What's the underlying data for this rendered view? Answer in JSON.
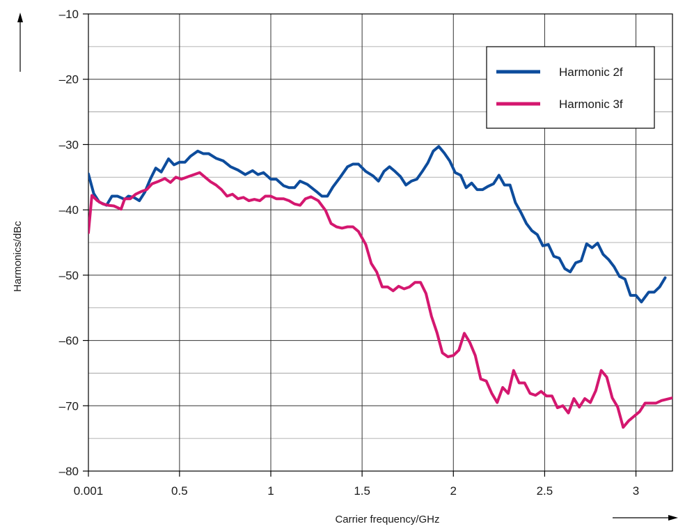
{
  "chart_data": {
    "type": "line",
    "title": "",
    "xlabel": "Carrier frequency/GHz",
    "ylabel": "Harmonics/dBc",
    "xlim": [
      0.001,
      3.2
    ],
    "ylim": [
      -80,
      -10
    ],
    "x_ticks": [
      {
        "value": 0.001,
        "label": "0.001"
      },
      {
        "value": 0.5,
        "label": "0.5"
      },
      {
        "value": 1,
        "label": "1"
      },
      {
        "value": 1.5,
        "label": "1.5"
      },
      {
        "value": 2,
        "label": "2"
      },
      {
        "value": 2.5,
        "label": "2.5"
      },
      {
        "value": 3,
        "label": "3"
      }
    ],
    "y_ticks": [
      {
        "value": -10,
        "label": "–10"
      },
      {
        "value": -20,
        "label": "–20"
      },
      {
        "value": -30,
        "label": "–30"
      },
      {
        "value": -40,
        "label": "–40"
      },
      {
        "value": -50,
        "label": "–50"
      },
      {
        "value": -60,
        "label": "–60"
      },
      {
        "value": -70,
        "label": "–70"
      },
      {
        "value": -80,
        "label": "–80"
      }
    ],
    "grid": true,
    "legend_position": "top-right",
    "series": [
      {
        "name": "Harmonic 2f",
        "color": "#0d4c9c",
        "points": [
          [
            0.001,
            -34.5
          ],
          [
            0.03,
            -37.5
          ],
          [
            0.06,
            -38.8
          ],
          [
            0.1,
            -39.3
          ],
          [
            0.13,
            -37.9
          ],
          [
            0.16,
            -37.9
          ],
          [
            0.2,
            -38.4
          ],
          [
            0.22,
            -37.9
          ],
          [
            0.25,
            -38.1
          ],
          [
            0.28,
            -38.6
          ],
          [
            0.31,
            -37.3
          ],
          [
            0.34,
            -35.3
          ],
          [
            0.37,
            -33.6
          ],
          [
            0.4,
            -34.2
          ],
          [
            0.44,
            -32.2
          ],
          [
            0.47,
            -33.1
          ],
          [
            0.5,
            -32.7
          ],
          [
            0.53,
            -32.7
          ],
          [
            0.56,
            -31.8
          ],
          [
            0.6,
            -31.0
          ],
          [
            0.63,
            -31.4
          ],
          [
            0.66,
            -31.4
          ],
          [
            0.7,
            -32.1
          ],
          [
            0.74,
            -32.5
          ],
          [
            0.78,
            -33.4
          ],
          [
            0.82,
            -33.9
          ],
          [
            0.86,
            -34.6
          ],
          [
            0.9,
            -34.0
          ],
          [
            0.93,
            -34.6
          ],
          [
            0.96,
            -34.3
          ],
          [
            1.0,
            -35.3
          ],
          [
            1.03,
            -35.3
          ],
          [
            1.07,
            -36.3
          ],
          [
            1.1,
            -36.6
          ],
          [
            1.13,
            -36.6
          ],
          [
            1.16,
            -35.6
          ],
          [
            1.2,
            -36.1
          ],
          [
            1.25,
            -37.2
          ],
          [
            1.28,
            -37.9
          ],
          [
            1.31,
            -37.9
          ],
          [
            1.34,
            -36.5
          ],
          [
            1.38,
            -35.0
          ],
          [
            1.42,
            -33.4
          ],
          [
            1.45,
            -33.0
          ],
          [
            1.48,
            -33.0
          ],
          [
            1.52,
            -34.1
          ],
          [
            1.56,
            -34.8
          ],
          [
            1.59,
            -35.6
          ],
          [
            1.62,
            -34.1
          ],
          [
            1.65,
            -33.4
          ],
          [
            1.68,
            -34.1
          ],
          [
            1.71,
            -34.9
          ],
          [
            1.74,
            -36.2
          ],
          [
            1.77,
            -35.6
          ],
          [
            1.8,
            -35.3
          ],
          [
            1.83,
            -34.1
          ],
          [
            1.86,
            -32.8
          ],
          [
            1.89,
            -31.0
          ],
          [
            1.92,
            -30.3
          ],
          [
            1.95,
            -31.3
          ],
          [
            1.98,
            -32.5
          ],
          [
            2.01,
            -34.3
          ],
          [
            2.04,
            -34.7
          ],
          [
            2.07,
            -36.6
          ],
          [
            2.1,
            -35.9
          ],
          [
            2.13,
            -36.9
          ],
          [
            2.16,
            -36.9
          ],
          [
            2.19,
            -36.4
          ],
          [
            2.22,
            -36.0
          ],
          [
            2.25,
            -34.7
          ],
          [
            2.28,
            -36.2
          ],
          [
            2.31,
            -36.2
          ],
          [
            2.34,
            -38.9
          ],
          [
            2.37,
            -40.4
          ],
          [
            2.4,
            -42.1
          ],
          [
            2.43,
            -43.2
          ],
          [
            2.46,
            -43.8
          ],
          [
            2.49,
            -45.5
          ],
          [
            2.52,
            -45.3
          ],
          [
            2.55,
            -47.1
          ],
          [
            2.58,
            -47.4
          ],
          [
            2.61,
            -49.0
          ],
          [
            2.64,
            -49.5
          ],
          [
            2.67,
            -48.1
          ],
          [
            2.7,
            -47.8
          ],
          [
            2.73,
            -45.2
          ],
          [
            2.76,
            -45.8
          ],
          [
            2.79,
            -45.1
          ],
          [
            2.82,
            -46.8
          ],
          [
            2.85,
            -47.6
          ],
          [
            2.88,
            -48.7
          ],
          [
            2.91,
            -50.2
          ],
          [
            2.94,
            -50.6
          ],
          [
            2.97,
            -53.1
          ],
          [
            3.0,
            -53.1
          ],
          [
            3.03,
            -54.1
          ],
          [
            3.07,
            -52.6
          ],
          [
            3.1,
            -52.6
          ],
          [
            3.13,
            -51.8
          ],
          [
            3.16,
            -50.4
          ]
        ]
      },
      {
        "name": "Harmonic 3f",
        "color": "#d4176f",
        "points": [
          [
            0.001,
            -43.5
          ],
          [
            0.02,
            -37.8
          ],
          [
            0.05,
            -38.6
          ],
          [
            0.08,
            -39.1
          ],
          [
            0.11,
            -39.3
          ],
          [
            0.14,
            -39.4
          ],
          [
            0.18,
            -39.9
          ],
          [
            0.2,
            -38.3
          ],
          [
            0.23,
            -38.3
          ],
          [
            0.26,
            -37.6
          ],
          [
            0.29,
            -37.2
          ],
          [
            0.32,
            -36.9
          ],
          [
            0.35,
            -36.0
          ],
          [
            0.38,
            -35.7
          ],
          [
            0.42,
            -35.2
          ],
          [
            0.45,
            -35.8
          ],
          [
            0.48,
            -35.0
          ],
          [
            0.51,
            -35.3
          ],
          [
            0.55,
            -34.9
          ],
          [
            0.58,
            -34.6
          ],
          [
            0.61,
            -34.3
          ],
          [
            0.64,
            -35.0
          ],
          [
            0.67,
            -35.7
          ],
          [
            0.7,
            -36.2
          ],
          [
            0.73,
            -36.9
          ],
          [
            0.76,
            -37.9
          ],
          [
            0.79,
            -37.6
          ],
          [
            0.82,
            -38.3
          ],
          [
            0.85,
            -38.1
          ],
          [
            0.88,
            -38.6
          ],
          [
            0.91,
            -38.4
          ],
          [
            0.94,
            -38.6
          ],
          [
            0.97,
            -37.9
          ],
          [
            1.0,
            -37.9
          ],
          [
            1.03,
            -38.3
          ],
          [
            1.07,
            -38.3
          ],
          [
            1.1,
            -38.6
          ],
          [
            1.13,
            -39.1
          ],
          [
            1.16,
            -39.3
          ],
          [
            1.19,
            -38.3
          ],
          [
            1.22,
            -38.0
          ],
          [
            1.26,
            -38.6
          ],
          [
            1.3,
            -40.1
          ],
          [
            1.33,
            -42.1
          ],
          [
            1.36,
            -42.6
          ],
          [
            1.39,
            -42.8
          ],
          [
            1.42,
            -42.6
          ],
          [
            1.45,
            -42.6
          ],
          [
            1.48,
            -43.3
          ],
          [
            1.52,
            -45.3
          ],
          [
            1.55,
            -48.2
          ],
          [
            1.58,
            -49.5
          ],
          [
            1.61,
            -51.8
          ],
          [
            1.64,
            -51.8
          ],
          [
            1.67,
            -52.4
          ],
          [
            1.7,
            -51.7
          ],
          [
            1.73,
            -52.1
          ],
          [
            1.76,
            -51.8
          ],
          [
            1.79,
            -51.1
          ],
          [
            1.82,
            -51.1
          ],
          [
            1.85,
            -52.8
          ],
          [
            1.88,
            -56.3
          ],
          [
            1.91,
            -58.8
          ],
          [
            1.94,
            -61.9
          ],
          [
            1.97,
            -62.5
          ],
          [
            2.0,
            -62.3
          ],
          [
            2.03,
            -61.5
          ],
          [
            2.06,
            -58.9
          ],
          [
            2.09,
            -60.3
          ],
          [
            2.12,
            -62.3
          ],
          [
            2.15,
            -65.9
          ],
          [
            2.18,
            -66.2
          ],
          [
            2.21,
            -68.1
          ],
          [
            2.24,
            -69.5
          ],
          [
            2.27,
            -67.2
          ],
          [
            2.3,
            -68.1
          ],
          [
            2.33,
            -64.6
          ],
          [
            2.36,
            -66.5
          ],
          [
            2.39,
            -66.5
          ],
          [
            2.42,
            -68.1
          ],
          [
            2.45,
            -68.4
          ],
          [
            2.48,
            -67.8
          ],
          [
            2.51,
            -68.5
          ],
          [
            2.54,
            -68.5
          ],
          [
            2.57,
            -70.3
          ],
          [
            2.6,
            -70.0
          ],
          [
            2.63,
            -71.1
          ],
          [
            2.66,
            -68.9
          ],
          [
            2.69,
            -70.2
          ],
          [
            2.72,
            -68.9
          ],
          [
            2.75,
            -69.5
          ],
          [
            2.78,
            -67.7
          ],
          [
            2.81,
            -64.6
          ],
          [
            2.84,
            -65.6
          ],
          [
            2.87,
            -68.8
          ],
          [
            2.9,
            -70.2
          ],
          [
            2.93,
            -73.3
          ],
          [
            2.96,
            -72.3
          ],
          [
            2.99,
            -71.6
          ],
          [
            3.02,
            -70.9
          ],
          [
            3.05,
            -69.6
          ],
          [
            3.08,
            -69.6
          ],
          [
            3.11,
            -69.6
          ],
          [
            3.14,
            -69.2
          ],
          [
            3.2,
            -68.8
          ]
        ]
      }
    ]
  }
}
